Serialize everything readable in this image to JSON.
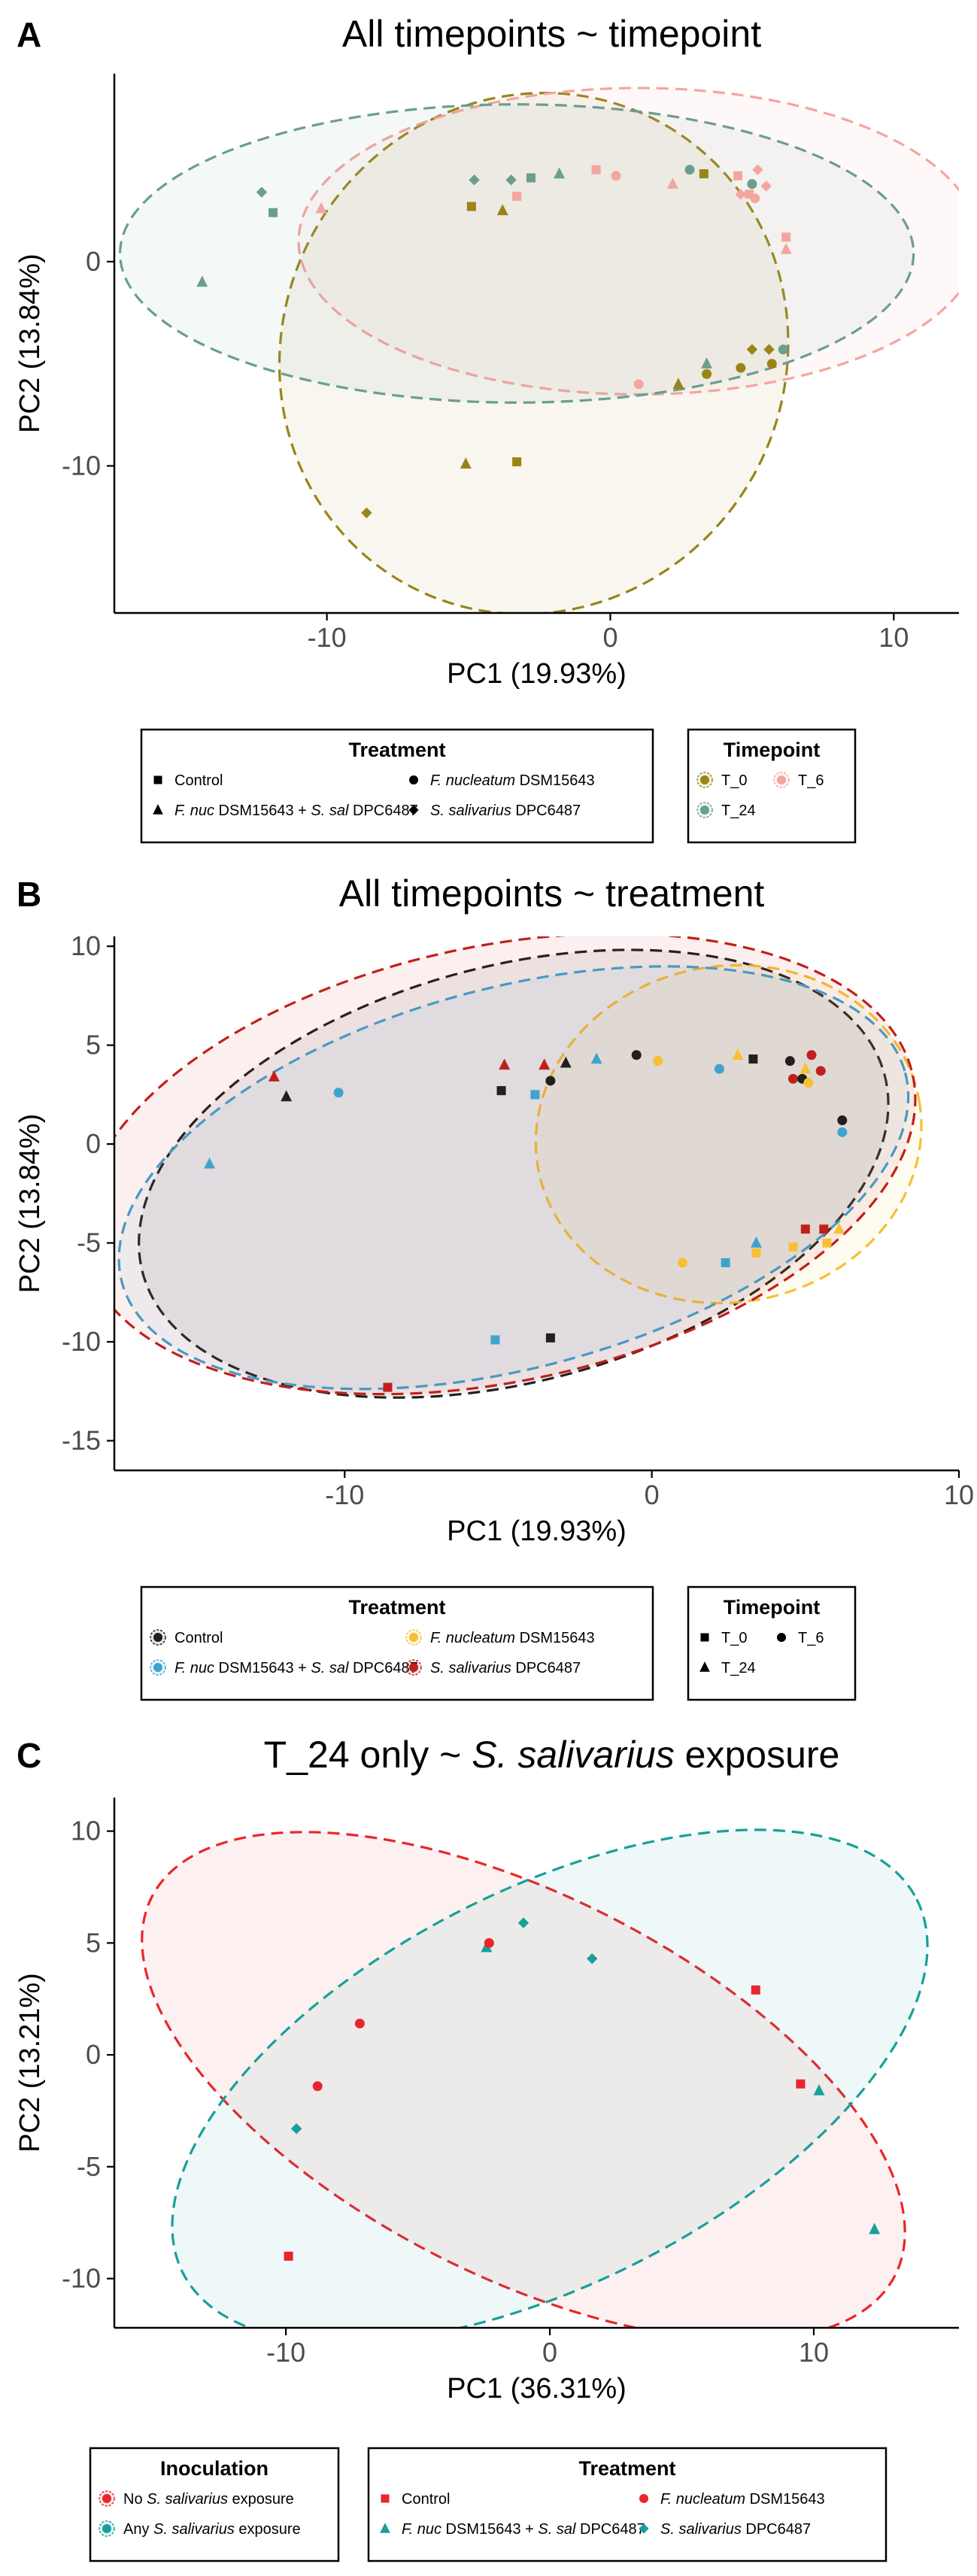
{
  "panels": [
    {
      "letter": "A",
      "title": "All timepoints ~ timepoint",
      "chart_data": {
        "type": "scatter",
        "xlabel": "PC1 (19.93%)",
        "ylabel": "PC2 (13.84%)",
        "xlim": [
          -17.5,
          12.3
        ],
        "ylim": [
          -17.2,
          9.2
        ],
        "xticks": [
          -10,
          0,
          10
        ],
        "yticks": [
          -10,
          0
        ],
        "grid": false,
        "color_by": "timepoint",
        "points": [
          {
            "x": -14.4,
            "y": -1.0,
            "treatment": "F_nuc_S_sal",
            "timepoint": "T_24"
          },
          {
            "x": -12.3,
            "y": 3.4,
            "treatment": "S_salivarius",
            "timepoint": "T_24"
          },
          {
            "x": -11.9,
            "y": 2.4,
            "treatment": "Control",
            "timepoint": "T_24"
          },
          {
            "x": -10.2,
            "y": 2.6,
            "treatment": "F_nuc_S_sal",
            "timepoint": "T_6"
          },
          {
            "x": -8.6,
            "y": -12.3,
            "treatment": "S_salivarius",
            "timepoint": "T_0"
          },
          {
            "x": -5.1,
            "y": -9.9,
            "treatment": "F_nuc_S_sal",
            "timepoint": "T_0"
          },
          {
            "x": -4.9,
            "y": 2.7,
            "treatment": "Control",
            "timepoint": "T_0"
          },
          {
            "x": -4.8,
            "y": 4.0,
            "treatment": "S_salivarius",
            "timepoint": "T_24"
          },
          {
            "x": -3.8,
            "y": 2.5,
            "treatment": "F_nuc_S_sal",
            "timepoint": "T_0"
          },
          {
            "x": -3.5,
            "y": 4.0,
            "treatment": "S_salivarius",
            "timepoint": "T_24"
          },
          {
            "x": -3.3,
            "y": -9.8,
            "treatment": "Control",
            "timepoint": "T_0"
          },
          {
            "x": -3.3,
            "y": 3.2,
            "treatment": "Control",
            "timepoint": "T_6"
          },
          {
            "x": -2.8,
            "y": 4.1,
            "treatment": "Control",
            "timepoint": "T_24"
          },
          {
            "x": -1.8,
            "y": 4.3,
            "treatment": "F_nuc_S_sal",
            "timepoint": "T_24"
          },
          {
            "x": -0.5,
            "y": 4.5,
            "treatment": "Control",
            "timepoint": "T_6"
          },
          {
            "x": 0.2,
            "y": 4.2,
            "treatment": "F_nuc",
            "timepoint": "T_6"
          },
          {
            "x": 1.0,
            "y": -6.0,
            "treatment": "F_nuc",
            "timepoint": "T_6"
          },
          {
            "x": 2.2,
            "y": 3.8,
            "treatment": "F_nuc_S_sal",
            "timepoint": "T_6"
          },
          {
            "x": 2.4,
            "y": -6.0,
            "treatment": "F_nuc_S_sal",
            "timepoint": "T_0"
          },
          {
            "x": 2.8,
            "y": 4.5,
            "treatment": "F_nuc",
            "timepoint": "T_24"
          },
          {
            "x": 3.3,
            "y": 4.3,
            "treatment": "Control",
            "timepoint": "T_0"
          },
          {
            "x": 3.4,
            "y": -5.0,
            "treatment": "F_nuc_S_sal",
            "timepoint": "T_24"
          },
          {
            "x": 3.4,
            "y": -5.5,
            "treatment": "F_nuc",
            "timepoint": "T_0"
          },
          {
            "x": 4.5,
            "y": 4.2,
            "treatment": "Control",
            "timepoint": "T_6"
          },
          {
            "x": 4.6,
            "y": 3.3,
            "treatment": "S_salivarius",
            "timepoint": "T_6"
          },
          {
            "x": 4.6,
            "y": -5.2,
            "treatment": "F_nuc",
            "timepoint": "T_0"
          },
          {
            "x": 4.9,
            "y": 3.3,
            "treatment": "Control",
            "timepoint": "T_6"
          },
          {
            "x": 5.0,
            "y": 3.8,
            "treatment": "F_nuc",
            "timepoint": "T_24"
          },
          {
            "x": 5.0,
            "y": -4.3,
            "treatment": "S_salivarius",
            "timepoint": "T_0"
          },
          {
            "x": 5.1,
            "y": 3.1,
            "treatment": "F_nuc",
            "timepoint": "T_6"
          },
          {
            "x": 5.2,
            "y": 4.5,
            "treatment": "S_salivarius",
            "timepoint": "T_6"
          },
          {
            "x": 5.5,
            "y": 3.7,
            "treatment": "S_salivarius",
            "timepoint": "T_6"
          },
          {
            "x": 5.6,
            "y": -4.3,
            "treatment": "S_salivarius",
            "timepoint": "T_0"
          },
          {
            "x": 5.7,
            "y": -5.0,
            "treatment": "F_nuc",
            "timepoint": "T_0"
          },
          {
            "x": 6.2,
            "y": 1.2,
            "treatment": "Control",
            "timepoint": "T_6"
          },
          {
            "x": 6.2,
            "y": 0.6,
            "treatment": "F_nuc_S_sal",
            "timepoint": "T_6"
          },
          {
            "x": 6.1,
            "y": -4.3,
            "treatment": "F_nuc",
            "timepoint": "T_24"
          }
        ],
        "ellipses": [
          {
            "group": "T_0",
            "cx": -2.7,
            "cy": -4.5,
            "rx": 9.3,
            "ry": 12.3,
            "angle": -60
          },
          {
            "group": "T_6",
            "cx": 1.0,
            "cy": 1.0,
            "rx": 12.0,
            "ry": 7.5,
            "angle": 0
          },
          {
            "group": "T_24",
            "cx": -3.3,
            "cy": 0.4,
            "rx": 14.0,
            "ry": 7.3,
            "angle": 0
          }
        ]
      },
      "legends": [
        {
          "title": "Treatment",
          "items": [
            {
              "key": "Control",
              "plain": "Control"
            },
            {
              "key": "F_nuc",
              "italic": "F. nucleatum",
              "rest": " DSM15643"
            },
            {
              "key": "F_nuc_S_sal",
              "italic": "F. nuc",
              "rest": " DSM15643 + ",
              "italic2": "S. sal",
              "rest2": " DPC6487"
            },
            {
              "key": "S_salivarius",
              "italic": "S. salivarius",
              "rest": " DPC6487"
            }
          ]
        },
        {
          "title": "Timepoint",
          "items": [
            {
              "key": "T_0",
              "plain": "T_0"
            },
            {
              "key": "T_6",
              "plain": "T_6"
            },
            {
              "key": "T_24",
              "plain": "T_24"
            }
          ]
        }
      ]
    },
    {
      "letter": "B",
      "title": "All timepoints ~ treatment",
      "chart_data": {
        "type": "scatter",
        "xlabel": "PC1 (19.93%)",
        "ylabel": "PC2 (13.84%)",
        "xlim": [
          -17.5,
          10.0
        ],
        "ylim": [
          -16.5,
          10.5
        ],
        "xticks": [
          -10,
          0,
          10
        ],
        "yticks": [
          -15,
          -10,
          -5,
          0,
          5,
          10
        ],
        "grid": false,
        "color_by": "treatment",
        "points": "same as panel A",
        "ellipses": [
          {
            "group": "Control",
            "cx": -4.5,
            "cy": -1.5,
            "rx": 12.5,
            "ry": 10.5,
            "angle": -15
          },
          {
            "group": "F_nuc",
            "cx": 2.5,
            "cy": 0.5,
            "rx": 6.3,
            "ry": 8.5,
            "angle": -10
          },
          {
            "group": "F_nuc_S_sal",
            "cx": -4.5,
            "cy": -1.7,
            "rx": 13.2,
            "ry": 9.6,
            "angle": -15
          },
          {
            "group": "S_salivarius",
            "cx": -5.0,
            "cy": -1.0,
            "rx": 13.8,
            "ry": 11.0,
            "angle": -12
          }
        ]
      },
      "legends": [
        {
          "title": "Treatment",
          "items": [
            {
              "key": "Control",
              "plain": "Control"
            },
            {
              "key": "F_nuc",
              "italic": "F. nucleatum",
              "rest": " DSM15643"
            },
            {
              "key": "F_nuc_S_sal",
              "italic": "F. nuc",
              "rest": " DSM15643 + ",
              "italic2": "S. sal",
              "rest2": " DPC6487"
            },
            {
              "key": "S_salivarius",
              "italic": "S. salivarius",
              "rest": " DPC6487"
            }
          ]
        },
        {
          "title": "Timepoint",
          "items": [
            {
              "key": "T_0",
              "plain": "T_0"
            },
            {
              "key": "T_6",
              "plain": "T_6"
            },
            {
              "key": "T_24",
              "plain": "T_24"
            }
          ]
        }
      ]
    },
    {
      "letter": "C",
      "title_prefix": "T_24 only ~ ",
      "title_italic": "S. salivarius",
      "title_suffix": " exposure",
      "chart_data": {
        "type": "scatter",
        "xlabel": "PC1 (36.31%)",
        "ylabel": "PC2 (13.21%)",
        "xlim": [
          -16.5,
          15.5
        ],
        "ylim": [
          -12.2,
          11.5
        ],
        "xticks": [
          -10,
          0,
          10
        ],
        "yticks": [
          -10,
          -5,
          0,
          5,
          10
        ],
        "grid": false,
        "color_by": "inoculation",
        "points": [
          {
            "x": -9.9,
            "y": -9.0,
            "treatment": "Control",
            "inoculation": "No"
          },
          {
            "x": -9.6,
            "y": -3.3,
            "treatment": "S_salivarius",
            "inoculation": "Any"
          },
          {
            "x": -8.8,
            "y": -1.4,
            "treatment": "F_nuc",
            "inoculation": "No"
          },
          {
            "x": -7.2,
            "y": 1.4,
            "treatment": "F_nuc",
            "inoculation": "No"
          },
          {
            "x": -2.4,
            "y": 4.8,
            "treatment": "F_nuc_S_sal",
            "inoculation": "Any"
          },
          {
            "x": -2.3,
            "y": 5.0,
            "treatment": "F_nuc",
            "inoculation": "No"
          },
          {
            "x": -1.0,
            "y": 5.9,
            "treatment": "S_salivarius",
            "inoculation": "Any"
          },
          {
            "x": 1.6,
            "y": 4.3,
            "treatment": "S_salivarius",
            "inoculation": "Any"
          },
          {
            "x": 7.8,
            "y": 2.9,
            "treatment": "Control",
            "inoculation": "No"
          },
          {
            "x": 9.5,
            "y": -1.3,
            "treatment": "Control",
            "inoculation": "No"
          },
          {
            "x": 10.2,
            "y": -1.6,
            "treatment": "F_nuc_S_sal",
            "inoculation": "Any"
          },
          {
            "x": 12.3,
            "y": -7.8,
            "treatment": "F_nuc_S_sal",
            "inoculation": "Any"
          }
        ],
        "ellipses": [
          {
            "group": "No",
            "cx": -1.0,
            "cy": -1.4,
            "rx": 15.8,
            "ry": 8.5,
            "angle": 27
          },
          {
            "group": "Any",
            "cx": 0.0,
            "cy": -1.4,
            "rx": 15.6,
            "ry": 8.8,
            "angle": -27
          }
        ]
      },
      "legends": [
        {
          "title": "Inoculation",
          "items": [
            {
              "key": "No",
              "prefix": "No ",
              "italic": "S. salivarius",
              "rest": " exposure"
            },
            {
              "key": "Any",
              "prefix": "Any ",
              "italic": "S. salivarius",
              "rest": " exposure"
            }
          ]
        },
        {
          "title": "Treatment",
          "items": [
            {
              "key": "Control",
              "plain": "Control"
            },
            {
              "key": "F_nuc",
              "italic": "F. nucleatum",
              "rest": " DSM15643"
            },
            {
              "key": "F_nuc_S_sal",
              "italic": "F. nuc",
              "rest": " DSM15643 + ",
              "italic2": "S. sal",
              "rest2": " DPC6487"
            },
            {
              "key": "S_salivarius",
              "italic": "S. salivarius",
              "rest": " DPC6487"
            }
          ]
        }
      ]
    }
  ],
  "colors": {
    "T_0": "#9a8416",
    "T_6": "#f4a59f",
    "T_24": "#6a9e8e",
    "Control": "#231f1e",
    "F_nuc": "#f6c032",
    "F_nuc_S_sal": "#3fa3cf",
    "S_salivarius": "#c0201b",
    "No": "#e8262c",
    "Any": "#17a09a"
  },
  "shapes": {
    "Control": "square",
    "F_nuc": "circle",
    "F_nuc_S_sal": "triangle",
    "S_salivarius": "diamond",
    "T_0": "square",
    "T_6": "circle",
    "T_24": "triangle"
  }
}
